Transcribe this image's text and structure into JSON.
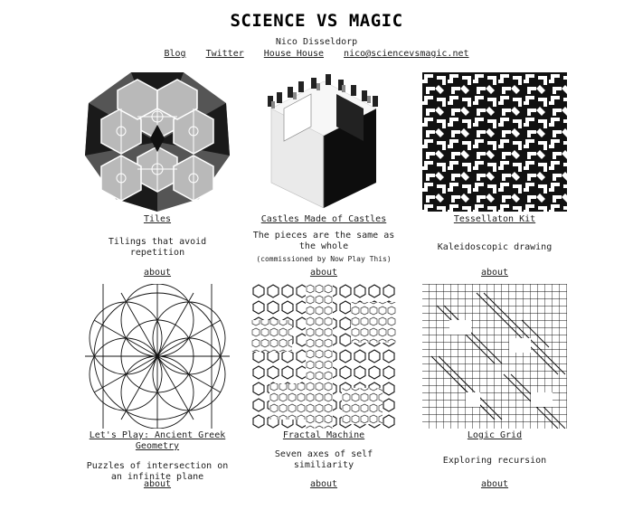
{
  "site": {
    "title": "SCIENCE VS MAGIC",
    "author": "Nico Disseldorp"
  },
  "nav": {
    "blog": "Blog",
    "twitter": "Twitter",
    "house_house": "House House",
    "email": "nico@sciencevsmagic.net"
  },
  "projects": [
    {
      "title": "Tiles",
      "description": "Tilings that avoid repetition",
      "about": "about"
    },
    {
      "title": "Castles Made of Castles",
      "description": "The pieces are the same as the whole",
      "note": "(commissioned by Now Play This)",
      "about": "about"
    },
    {
      "title": "Tessellaton Kit",
      "description": "Kaleidoscopic drawing",
      "about": "about"
    },
    {
      "title": "Let's Play: Ancient Greek Geometry",
      "description": "Puzzles of intersection on an infinite plane",
      "about": "about"
    },
    {
      "title": "Fractal Machine",
      "description": "Seven axes of self similiarity",
      "about": "about"
    },
    {
      "title": "Logic Grid",
      "description": "Exploring recursion",
      "about": "about"
    }
  ]
}
